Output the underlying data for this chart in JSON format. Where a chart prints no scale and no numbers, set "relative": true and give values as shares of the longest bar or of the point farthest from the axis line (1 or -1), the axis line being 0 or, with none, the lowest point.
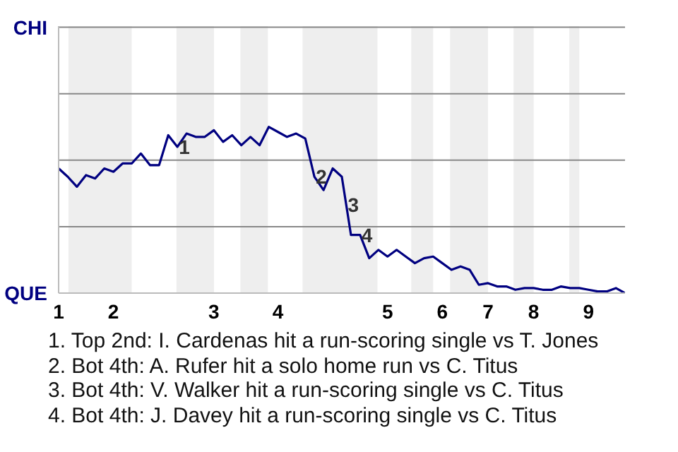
{
  "chart_data": {
    "type": "line",
    "relative": true,
    "categories": [
      "1",
      null,
      null,
      null,
      null,
      null,
      "2",
      null,
      null,
      null,
      null,
      null,
      null,
      null,
      null,
      null,
      null,
      "3",
      null,
      null,
      null,
      null,
      null,
      null,
      "4",
      null,
      null,
      null,
      null,
      null,
      null,
      null,
      null,
      null,
      null,
      null,
      "5",
      null,
      null,
      null,
      null,
      null,
      "6",
      null,
      null,
      null,
      null,
      "7",
      null,
      null,
      null,
      null,
      "8",
      null,
      null,
      null,
      null,
      null,
      "9",
      null,
      null,
      null,
      null
    ],
    "series": [
      {
        "color": "#000080",
        "values": [
          0.75,
          0.7,
          0.64,
          0.71,
          0.69,
          0.75,
          0.73,
          0.78,
          0.78,
          0.84,
          0.77,
          0.77,
          0.95,
          0.88,
          0.96,
          0.94,
          0.94,
          0.98,
          0.91,
          0.95,
          0.89,
          0.94,
          0.89,
          1,
          0.97,
          0.94,
          0.96,
          0.93,
          0.7,
          0.62,
          0.75,
          0.7,
          0.35,
          0.35,
          0.21,
          0.26,
          0.22,
          0.26,
          0.22,
          0.18,
          0.21,
          0.22,
          0.18,
          0.14,
          0.16,
          0.14,
          0.05,
          0.06,
          0.04,
          0.04,
          0.02,
          0.03,
          0.03,
          0.02,
          0.02,
          0.04,
          0.03,
          0.03,
          0.02,
          0.01,
          0.01,
          0.03,
          0
        ]
      }
    ],
    "ref_lines": [
      {
        "axis": "y",
        "value": 0.4,
        "color": "#888888"
      },
      {
        "axis": "y",
        "value": 0.8,
        "color": "#888888"
      },
      {
        "axis": "y",
        "value": 1.2,
        "color": "#888888"
      },
      {
        "axis": "y",
        "value": 1.6,
        "color": "#888888"
      }
    ],
    "annotations": [
      "CHI",
      "QUE",
      "1",
      "2",
      "3",
      "4",
      "1. Top 2nd: I. Cardenas hit a run-scoring single vs T. Jones",
      "2. Bot 4th: A. Rufer hit a solo home run vs C. Titus",
      "3. Bot 4th: V. Walker hit a run-scoring single vs C. Titus",
      "4. Bot 4th: J. Davey hit a run-scoring single vs C. Titus"
    ]
  }
}
